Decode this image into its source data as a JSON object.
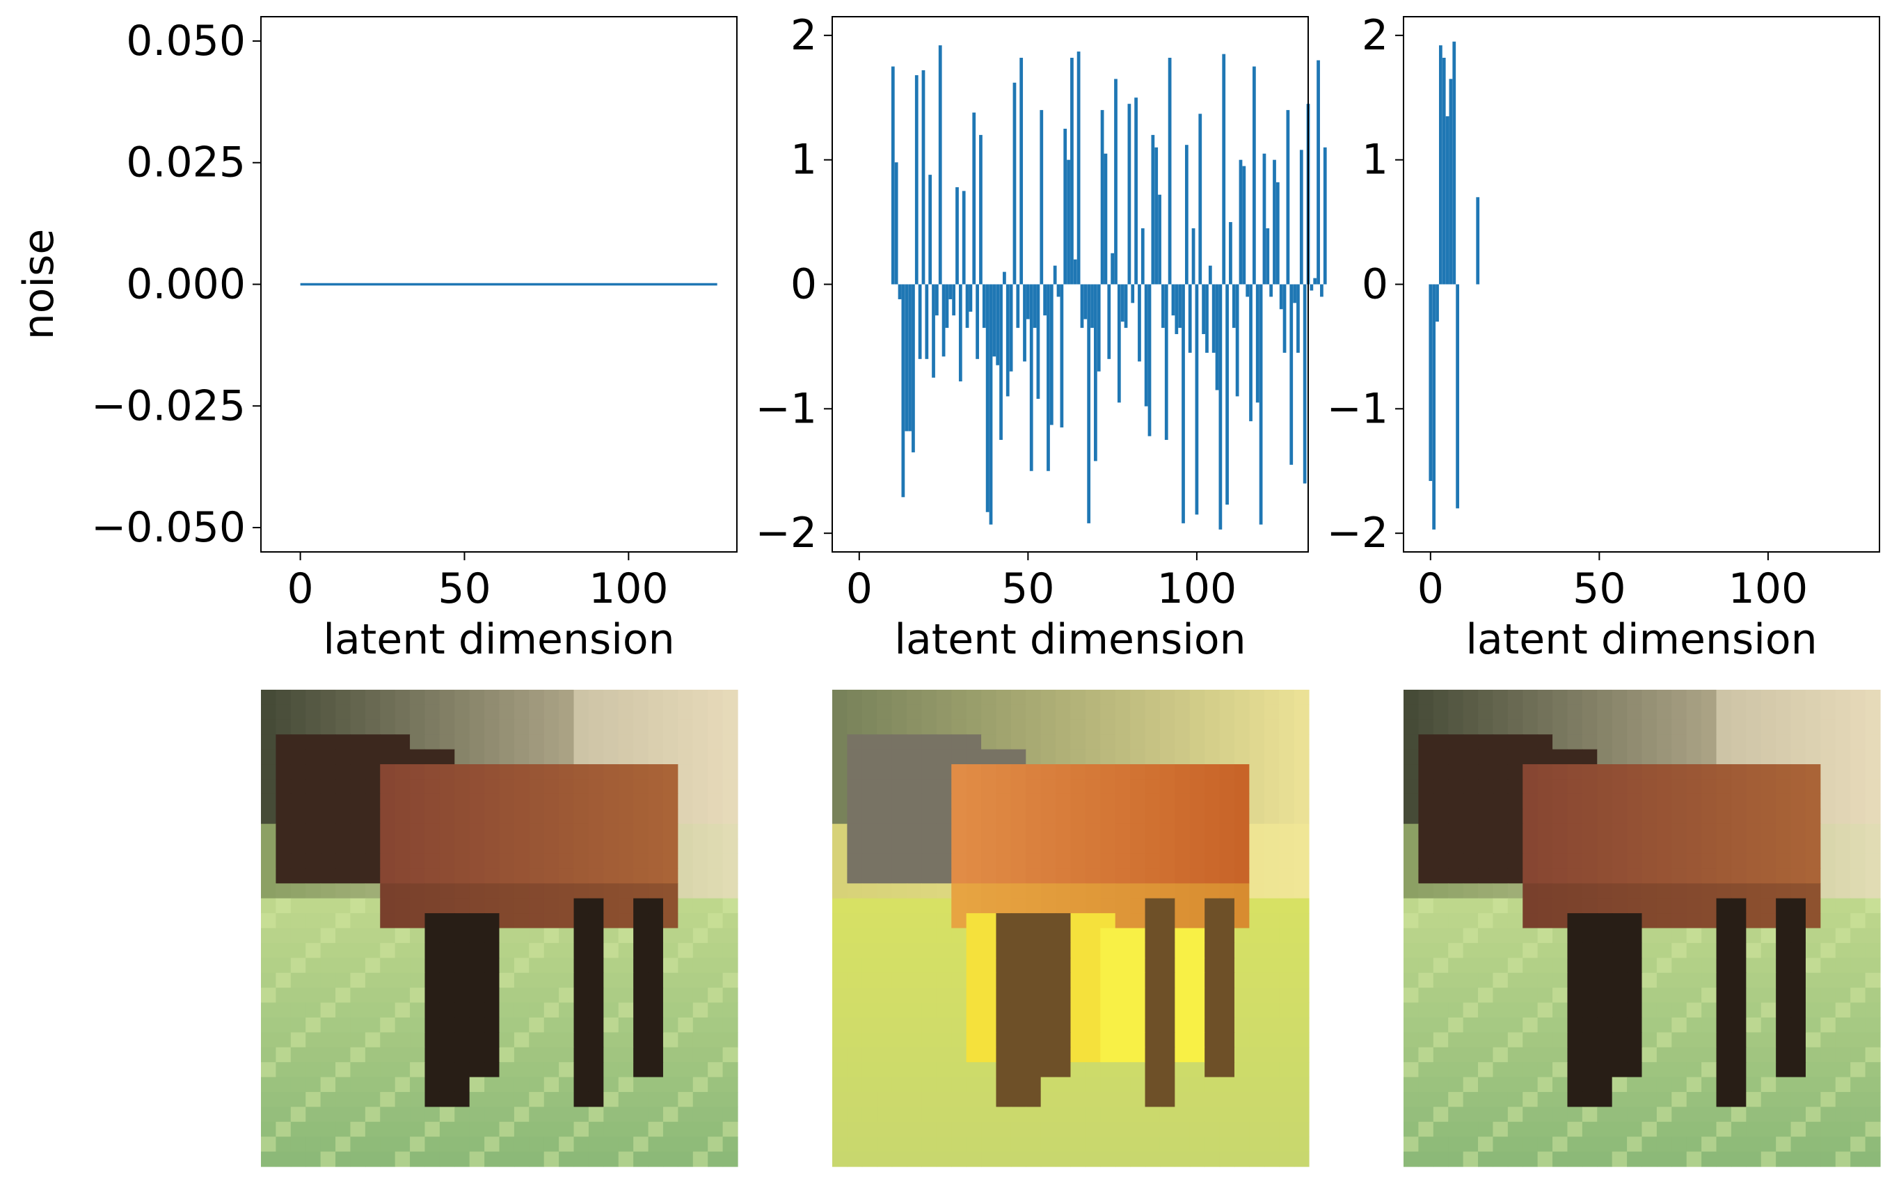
{
  "chart_data": [
    {
      "type": "line",
      "ylabel": "noise",
      "xlabel": "latent dimension",
      "xlim": [
        -12,
        133
      ],
      "ylim": [
        -0.055,
        0.055
      ],
      "xticks": [
        0,
        50,
        100
      ],
      "yticks": [
        0.05,
        0.025,
        0.0,
        -0.025,
        -0.05
      ],
      "ytick_labels": [
        "0.050",
        "0.025",
        "0.000",
        "−0.025",
        "−0.050"
      ],
      "series": [
        {
          "color": "#1f77b4",
          "x": [
            0,
            127
          ],
          "y": [
            0,
            0
          ]
        }
      ]
    },
    {
      "type": "bar",
      "xlabel": "latent dimension",
      "xlim": [
        -8,
        133
      ],
      "ylim": [
        -2.15,
        2.15
      ],
      "xticks": [
        0,
        50,
        100
      ],
      "yticks": [
        2,
        1,
        0,
        -1,
        -2
      ],
      "ytick_labels": [
        "2",
        "1",
        "0",
        "−1",
        "−2"
      ],
      "color": "#1f77b4",
      "x_start": 10,
      "values": [
        1.75,
        0.98,
        -0.12,
        -1.71,
        -1.18,
        -1.18,
        -1.35,
        1.68,
        -0.6,
        1.72,
        -0.6,
        0.88,
        -0.75,
        -0.25,
        1.92,
        -0.58,
        -0.35,
        -0.12,
        -0.25,
        0.78,
        -0.78,
        0.75,
        -0.35,
        -0.22,
        1.38,
        -0.6,
        1.2,
        -0.35,
        -1.83,
        -1.93,
        -0.58,
        -0.65,
        -1.25,
        0.1,
        -0.9,
        -0.7,
        1.62,
        -0.35,
        1.82,
        -0.62,
        -0.28,
        -1.5,
        -0.35,
        -0.92,
        1.4,
        -0.25,
        -1.5,
        -1.13,
        0.15,
        -0.1,
        -1.15,
        1.25,
        1.0,
        1.82,
        0.2,
        1.87,
        -0.35,
        -0.28,
        -1.92,
        -0.35,
        -1.42,
        -0.7,
        1.4,
        1.05,
        -0.6,
        0.25,
        1.65,
        -0.95,
        -0.3,
        -0.35,
        1.45,
        -0.15,
        1.5,
        -0.62,
        0.45,
        -0.98,
        -1.22,
        1.2,
        1.1,
        0.72,
        -0.35,
        -1.25,
        1.82,
        -0.25,
        -0.4,
        -0.35,
        -1.92,
        1.12,
        -0.55,
        0.45,
        -1.85,
        1.37,
        -0.4,
        -0.55,
        0.15,
        -0.55,
        -0.85,
        -1.97,
        1.85,
        -1.77,
        0.5,
        -0.35,
        -0.9,
        1.0,
        0.95,
        -0.1,
        -1.1,
        1.75,
        -0.95,
        -1.93,
        1.05,
        0.45,
        -0.1,
        1.0,
        0.82,
        -0.2,
        -0.55,
        1.4,
        -1.45,
        -0.15,
        -0.55,
        1.08,
        -1.6,
        1.45,
        -0.05,
        0.05,
        1.8,
        -0.1,
        1.1
      ]
    },
    {
      "type": "bar",
      "xlabel": "latent dimension",
      "xlim": [
        -8,
        133
      ],
      "ylim": [
        -2.15,
        2.15
      ],
      "xticks": [
        0,
        50,
        100
      ],
      "yticks": [
        2,
        1,
        0,
        -1,
        -2
      ],
      "ytick_labels": [
        "2",
        "1",
        "0",
        "−1",
        "−2"
      ],
      "color": "#1f77b4",
      "x_start": 0,
      "values": [
        -1.58,
        -1.97,
        -0.3,
        1.92,
        1.82,
        1.35,
        1.65,
        1.95,
        -1.8,
        0.0,
        0.0,
        0.0,
        0.0,
        0.0,
        0.7
      ]
    }
  ],
  "images": [
    {
      "alt": "reconstructed horse image, zero noise",
      "palette": "original"
    },
    {
      "alt": "reconstructed horse image, full noise",
      "palette": "noisy"
    },
    {
      "alt": "reconstructed horse image, sparse noise",
      "palette": "original"
    }
  ]
}
